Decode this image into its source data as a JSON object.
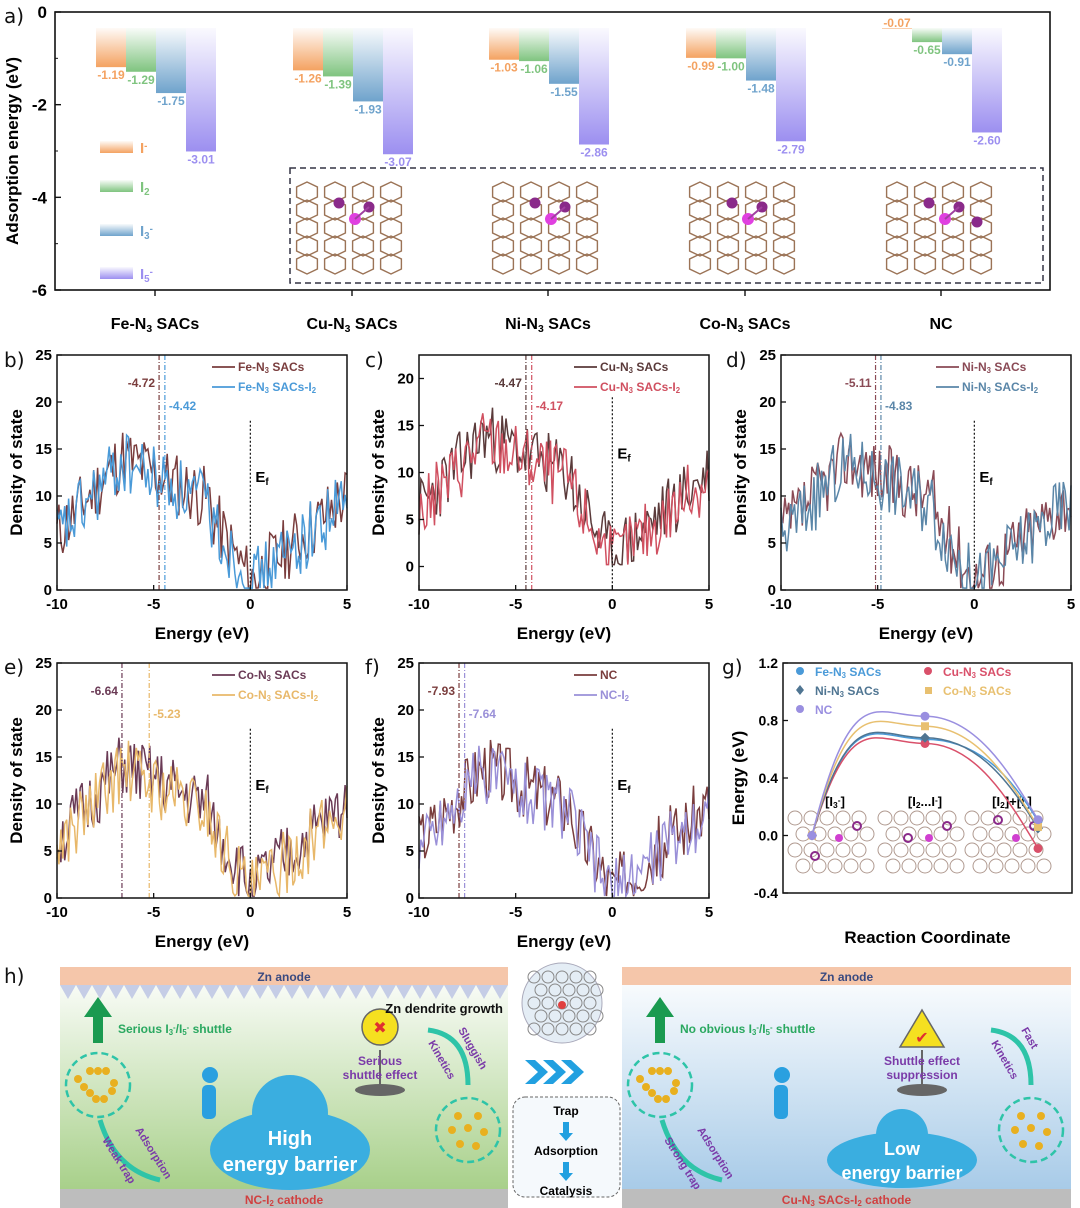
{
  "panel_labels": {
    "a": "a)",
    "b": "b)",
    "c": "c)",
    "d": "d)",
    "e": "e)",
    "f": "f)",
    "g": "g)",
    "h": "h)"
  },
  "colors": {
    "I-": "#f4a261",
    "I2": "#7fc47f",
    "I3": "#6fa3cc",
    "I5": "#9c8ff0",
    "feN3": "#7a3d3d",
    "feN3I2": "#4a9ad8",
    "cuN3": "#5a3a3a",
    "cuN3I2": "#d05060",
    "niN3": "#8a4a55",
    "niN3I2": "#5a86a8",
    "coN3": "#6a3a55",
    "coN3I2": "#e8b86a",
    "nc": "#7a3d3d",
    "ncI2": "#9a90d8"
  },
  "chart_data": [
    {
      "id": "a",
      "type": "bar",
      "title": "",
      "ylabel": "Adsorption energy (eV)",
      "ylim": [
        -6,
        0
      ],
      "yticks": [
        0,
        -2,
        -4,
        -6
      ],
      "categories": [
        "Fe-N3 SACs",
        "Cu-N3 SACs",
        "Ni-N3 SACs",
        "Co-N3 SACs",
        "NC"
      ],
      "category_labels": [
        {
          "pre": "Fe-N",
          "sub": "3",
          "post": " SACs"
        },
        {
          "pre": "Cu-N",
          "sub": "3",
          "post": " SACs"
        },
        {
          "pre": "Ni-N",
          "sub": "3",
          "post": " SACs"
        },
        {
          "pre": "Co-N",
          "sub": "3",
          "post": " SACs"
        },
        {
          "pre": "NC",
          "sub": "",
          "post": ""
        }
      ],
      "series": [
        {
          "name": "I-",
          "label": "I",
          "sup": "-",
          "sub": "",
          "values": [
            -1.19,
            -1.26,
            -1.03,
            -0.99,
            -0.07
          ]
        },
        {
          "name": "I2",
          "label": "I",
          "sup": "",
          "sub": "2",
          "values": [
            -1.29,
            -1.39,
            -1.06,
            -1.0,
            -0.65
          ]
        },
        {
          "name": "I3-",
          "label": "I",
          "sup": "-",
          "sub": "3",
          "values": [
            -1.75,
            -1.93,
            -1.55,
            -1.48,
            -0.91
          ]
        },
        {
          "name": "I5-",
          "label": "I",
          "sup": "-",
          "sub": "5",
          "values": [
            -3.01,
            -3.07,
            -2.86,
            -2.79,
            -2.6
          ]
        }
      ],
      "legend": "left-middle",
      "inset": "atomic structures of I5- adsorbed on Cu-N3, Ni-N3, Co-N3 SACs and NC"
    },
    {
      "id": "b",
      "type": "line",
      "xlabel": "Energy (eV)",
      "ylabel": "Density of state",
      "xlim": [
        -10,
        5
      ],
      "ylim": [
        0,
        25
      ],
      "xticks": [
        -10,
        -5,
        0,
        5
      ],
      "yticks": [
        0,
        5,
        10,
        15,
        20,
        25
      ],
      "series": [
        {
          "name": "Fe-N3 SACs",
          "pre": "Fe-N",
          "sub": "3",
          "post": " SACs",
          "colorKey": "feN3"
        },
        {
          "name": "Fe-N3 SACs-I2",
          "pre": "Fe-N",
          "sub": "3",
          "post": " SACs-I",
          "sub2": "2",
          "colorKey": "feN3I2"
        }
      ],
      "dband_centers": [
        {
          "value": -4.72,
          "label": "-4.72",
          "colorKey": "feN3"
        },
        {
          "value": -4.42,
          "label": "-4.42",
          "colorKey": "feN3I2"
        }
      ],
      "ef_label": "E",
      "ef_sub": "f",
      "legend": "top-right",
      "seed": 11
    },
    {
      "id": "c",
      "type": "line",
      "xlabel": "Energy (eV)",
      "ylabel": "Density of state",
      "xlim": [
        -10,
        5
      ],
      "ylim": [
        -2.5,
        22.5
      ],
      "xticks": [
        -10,
        -5,
        0,
        5
      ],
      "yticks": [
        0,
        5,
        10,
        15,
        20
      ],
      "series": [
        {
          "name": "Cu-N3 SACs",
          "pre": "Cu-N",
          "sub": "3",
          "post": " SACs",
          "colorKey": "cuN3"
        },
        {
          "name": "Cu-N3 SACs-I2",
          "pre": "Cu-N",
          "sub": "3",
          "post": " SACs-I",
          "sub2": "2",
          "colorKey": "cuN3I2"
        }
      ],
      "dband_centers": [
        {
          "value": -4.47,
          "label": "-4.47",
          "colorKey": "cuN3"
        },
        {
          "value": -4.17,
          "label": "-4.17",
          "colorKey": "cuN3I2"
        }
      ],
      "ef_label": "E",
      "ef_sub": "f",
      "legend": "top-right",
      "seed": 23
    },
    {
      "id": "d",
      "type": "line",
      "xlabel": "Energy (eV)",
      "ylabel": "Density of state",
      "xlim": [
        -10,
        5
      ],
      "ylim": [
        0,
        25
      ],
      "xticks": [
        -10,
        -5,
        0,
        5
      ],
      "yticks": [
        0,
        5,
        10,
        15,
        20,
        25
      ],
      "series": [
        {
          "name": "Ni-N3 SACs",
          "pre": "Ni-N",
          "sub": "3",
          "post": " SACs",
          "colorKey": "niN3"
        },
        {
          "name": "Ni-N3 SACs-I2",
          "pre": "Ni-N",
          "sub": "3",
          "post": " SACs-I",
          "sub2": "2",
          "colorKey": "niN3I2"
        }
      ],
      "dband_centers": [
        {
          "value": -5.11,
          "label": "-5.11",
          "colorKey": "niN3"
        },
        {
          "value": -4.83,
          "label": "-4.83",
          "colorKey": "niN3I2"
        }
      ],
      "ef_label": "E",
      "ef_sub": "f",
      "legend": "top-right",
      "seed": 37
    },
    {
      "id": "e",
      "type": "line",
      "xlabel": "Energy (eV)",
      "ylabel": "Density of state",
      "xlim": [
        -10,
        5
      ],
      "ylim": [
        0,
        25
      ],
      "xticks": [
        -10,
        -5,
        0,
        5
      ],
      "yticks": [
        0,
        5,
        10,
        15,
        20,
        25
      ],
      "series": [
        {
          "name": "Co-N3 SACs",
          "pre": "Co-N",
          "sub": "3",
          "post": " SACs",
          "colorKey": "coN3"
        },
        {
          "name": "Co-N3 SACs-I2",
          "pre": "Co-N",
          "sub": "3",
          "post": " SACs-I",
          "sub2": "2",
          "colorKey": "coN3I2"
        }
      ],
      "dband_centers": [
        {
          "value": -6.64,
          "label": "-6.64",
          "colorKey": "coN3"
        },
        {
          "value": -5.23,
          "label": "-5.23",
          "colorKey": "coN3I2"
        }
      ],
      "ef_label": "E",
      "ef_sub": "f",
      "legend": "top-right",
      "seed": 51
    },
    {
      "id": "f",
      "type": "line",
      "xlabel": "Energy (eV)",
      "ylabel": "Density of state",
      "xlim": [
        -10,
        5
      ],
      "ylim": [
        0,
        25
      ],
      "xticks": [
        -10,
        -5,
        0,
        5
      ],
      "yticks": [
        0,
        5,
        10,
        15,
        20,
        25
      ],
      "series": [
        {
          "name": "NC",
          "pre": "NC",
          "sub": "",
          "post": "",
          "colorKey": "nc"
        },
        {
          "name": "NC-I2",
          "pre": "NC-I",
          "sub": "2",
          "post": "",
          "colorKey": "ncI2"
        }
      ],
      "dband_centers": [
        {
          "value": -7.93,
          "label": "-7.93",
          "colorKey": "nc"
        },
        {
          "value": -7.64,
          "label": "-7.64",
          "colorKey": "ncI2"
        }
      ],
      "ef_label": "E",
      "ef_sub": "f",
      "legend": "top-right",
      "seed": 67
    },
    {
      "id": "g",
      "type": "line",
      "xlabel": "Reaction Coordinate",
      "ylabel": "Energy (eV)",
      "ylim": [
        -0.4,
        1.2
      ],
      "yticks": [
        -0.4,
        0.0,
        0.4,
        0.8,
        1.2
      ],
      "ytick_labels": [
        "-0.4",
        "0.0",
        "0.4",
        "0.8",
        "1.2"
      ],
      "x": [
        "[I3-]",
        "[I2...I-]",
        "[I2]+[I-]"
      ],
      "states": [
        {
          "pre": "[I",
          "sub": "3",
          "sup": "-",
          "post": "]"
        },
        {
          "pre": "[I",
          "sub": "2",
          "sup": "",
          "post": "...I",
          "sup2": "-",
          "post2": "]"
        },
        {
          "pre": "[I",
          "sub": "2",
          "sup": "",
          "post": "]+[I",
          "sup2": "-",
          "post2": "]"
        }
      ],
      "series": [
        {
          "name": "Fe-N3 SACs",
          "pre": "Fe-N",
          "sub": "3",
          "post": " SACs",
          "color": "#4a9ad8",
          "marker": "circle",
          "values": [
            0,
            0.67,
            0.1
          ]
        },
        {
          "name": "Cu-N3 SACs",
          "pre": "Cu-N",
          "sub": "3",
          "post": " SACs",
          "color": "#d9506a",
          "marker": "circle",
          "values": [
            0,
            0.64,
            -0.09
          ]
        },
        {
          "name": "Ni-N3 SACs",
          "pre": "Ni-N",
          "sub": "3",
          "post": " SACs",
          "color": "#4f7592",
          "marker": "diamond",
          "values": [
            0,
            0.68,
            0.05
          ]
        },
        {
          "name": "Co-N3 SACs",
          "pre": "Co-N",
          "sub": "3",
          "post": " SACs",
          "color": "#e8c070",
          "marker": "square",
          "values": [
            0,
            0.76,
            0.06
          ]
        },
        {
          "name": "NC",
          "pre": "NC",
          "sub": "",
          "post": "",
          "color": "#9a8fe0",
          "marker": "circle",
          "values": [
            0,
            0.83,
            0.11
          ]
        }
      ],
      "legend": "top-left"
    }
  ],
  "schematic": {
    "left": {
      "anode": "Zn anode",
      "dendrite": "Zn dendrite growth",
      "shuttle": "Serious I3-/I5- shuttle",
      "shuttle_parts": {
        "a": "Serious I",
        "s1": "3",
        "p1": "-",
        "b": "/I",
        "s2": "5",
        "p2": "-",
        "c": " shuttle"
      },
      "sign": "Serious shuttle effect",
      "sign1": "Serious",
      "sign2": "shuttle effect",
      "kinetics1": "Sluggish",
      "kinetics2": "Kinetics",
      "adsorption": "Adsorption",
      "trap": "Weak trap",
      "cloud1": "High",
      "cloud2": "energy barrier",
      "cathode": "NC-I2 cathode",
      "cathode_pre": "NC-I",
      "cathode_sub": "2",
      "cathode_post": " cathode"
    },
    "middle": {
      "steps": [
        "Trap",
        "Adsorption",
        "Catalysis"
      ]
    },
    "right": {
      "anode": "Zn anode",
      "shuttle": "No obvious I3-/I5- shuttle",
      "shuttle_parts": {
        "a": "No obvious I",
        "s1": "3",
        "p1": "-",
        "b": "/I",
        "s2": "5",
        "p2": "-",
        "c": " shuttle"
      },
      "sign1": "Shuttle effect",
      "sign2": "suppression",
      "kinetics1": "Fast",
      "kinetics2": "Kinetics",
      "adsorption": "Adsorption",
      "trap": "Strong trap",
      "cloud1": "Low",
      "cloud2": "energy barrier",
      "cathode": "Cu-N3 SACs-I2 cathode",
      "cathode_pre": "Cu-N",
      "cathode_sub": "3",
      "cathode_mid": " SACs-I",
      "cathode_sub2": "2",
      "cathode_post": " cathode"
    }
  }
}
